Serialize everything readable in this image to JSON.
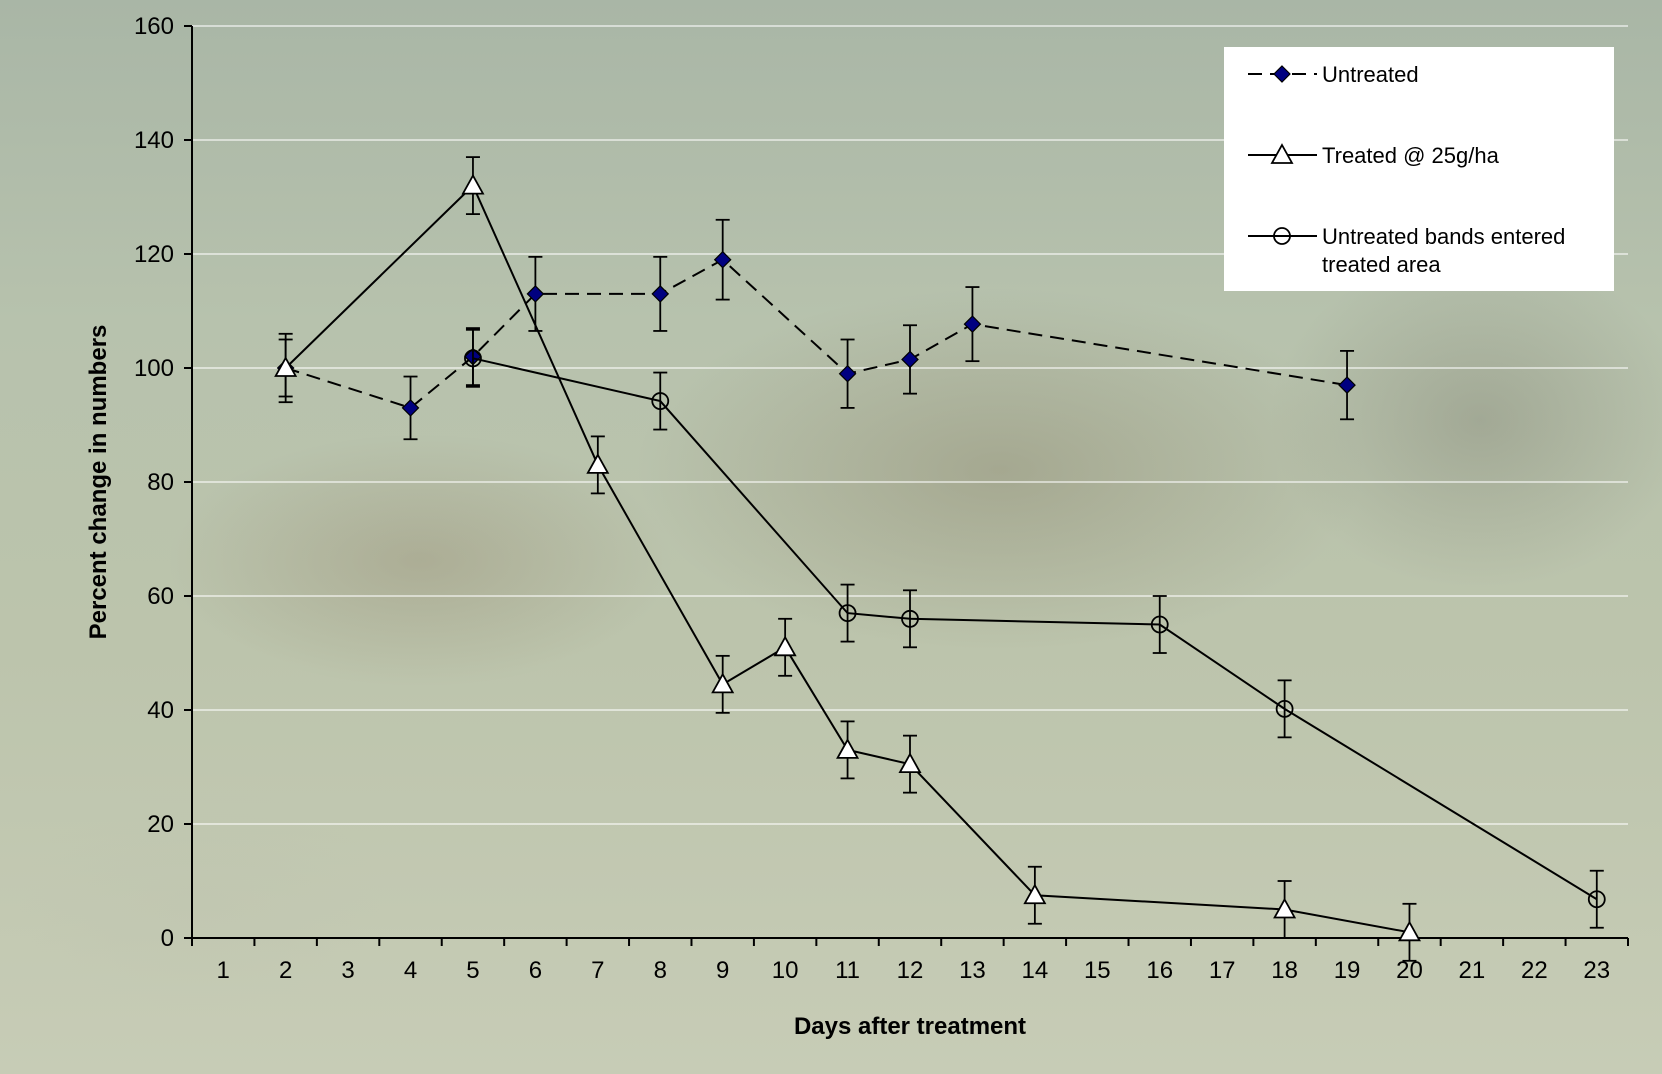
{
  "chart_data": {
    "type": "line",
    "title": "",
    "xlabel": "Days after treatment",
    "ylabel": "Percent change in numbers",
    "ylim": [
      0,
      160
    ],
    "yticks": [
      0,
      20,
      40,
      60,
      80,
      100,
      120,
      140,
      160
    ],
    "categories": [
      "1",
      "2",
      "3",
      "4",
      "5",
      "6",
      "7",
      "8",
      "9",
      "10",
      "11",
      "12",
      "13",
      "14",
      "15",
      "16",
      "17",
      "18",
      "19",
      "20",
      "21",
      "22",
      "23"
    ],
    "grid": "horizontal",
    "legend_position": "top-right",
    "series": [
      {
        "name": "Untreated",
        "style": "dashed",
        "marker": "filled-diamond",
        "color": "#000080",
        "x": [
          2,
          4,
          5,
          6,
          8,
          9,
          11,
          12,
          13,
          19
        ],
        "y": [
          100,
          93,
          102,
          113,
          113,
          119,
          99,
          101.5,
          107.7,
          97
        ],
        "error": [
          6,
          5.5,
          5,
          6.5,
          6.5,
          7,
          6,
          6,
          6.5,
          6
        ]
      },
      {
        "name": "Treated @ 25g/ha",
        "style": "solid",
        "marker": "open-triangle",
        "color": "#000000",
        "x": [
          2,
          5,
          7,
          9,
          10,
          11,
          12,
          14,
          18,
          20
        ],
        "y": [
          100,
          132,
          83,
          44.5,
          51,
          33,
          30.5,
          7.5,
          5,
          1
        ],
        "error": [
          5,
          5,
          5,
          5,
          5,
          5,
          5,
          5,
          5,
          5
        ]
      },
      {
        "name": "Untreated bands entered\ntreated area",
        "style": "solid",
        "marker": "open-circle",
        "color": "#000000",
        "x": [
          5,
          8,
          11,
          12,
          16,
          18,
          23
        ],
        "y": [
          101.7,
          94.2,
          57,
          56,
          55,
          40.2,
          6.8
        ],
        "error": [
          5,
          5,
          5,
          5,
          5,
          5,
          5
        ]
      }
    ]
  }
}
